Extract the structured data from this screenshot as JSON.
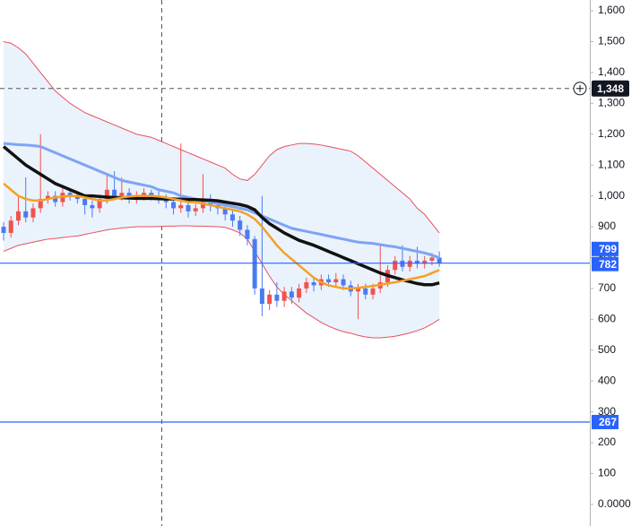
{
  "chart_data": {
    "type": "candlestick",
    "ylim": [
      -70,
      1635
    ],
    "yticks": [
      {
        "value": 0,
        "label": "0.0000"
      },
      100,
      200,
      300,
      400,
      500,
      600,
      700,
      800,
      900,
      {
        "value": 1000,
        "label": "1,000"
      },
      {
        "value": 1100,
        "label": "1,100"
      },
      {
        "value": 1200,
        "label": "1,200"
      },
      {
        "value": 1300,
        "label": "1,300"
      },
      {
        "value": 1400,
        "label": "1,400"
      },
      {
        "value": 1500,
        "label": "1,500"
      },
      {
        "value": 1600,
        "label": "1,600"
      }
    ],
    "candles": {
      "up_color": "#ef5350",
      "down_color": "#4a7cf0",
      "open": [
        900,
        880,
        920,
        950,
        930,
        960,
        990,
        1000,
        980,
        1010,
        1000,
        990,
        970,
        960,
        990,
        1020,
        1000,
        1010,
        990,
        1000,
        1010,
        1000,
        990,
        980,
        960,
        970,
        950,
        960,
        990,
        970,
        960,
        940,
        920,
        890,
        860,
        700,
        650,
        680,
        660,
        690,
        670,
        700,
        720,
        710,
        730,
        720,
        730,
        710,
        690,
        700,
        680,
        700,
        720,
        760,
        790,
        770,
        790,
        780,
        790,
        800
      ],
      "high": [
        915,
        935,
        1000,
        1060,
        975,
        1200,
        1015,
        1015,
        1025,
        1025,
        1015,
        1005,
        985,
        1005,
        1070,
        1080,
        1060,
        1025,
        1015,
        1025,
        1020,
        1015,
        1005,
        995,
        1170,
        985,
        975,
        1070,
        1005,
        985,
        975,
        955,
        935,
        905,
        870,
        1000,
        695,
        720,
        705,
        705,
        715,
        735,
        735,
        745,
        745,
        750,
        745,
        725,
        715,
        715,
        715,
        840,
        775,
        805,
        840,
        805,
        835,
        805,
        815,
        820
      ],
      "low": [
        855,
        865,
        905,
        915,
        915,
        945,
        975,
        965,
        965,
        985,
        975,
        940,
        930,
        945,
        975,
        985,
        985,
        975,
        975,
        985,
        985,
        975,
        960,
        940,
        945,
        930,
        935,
        945,
        950,
        940,
        920,
        900,
        870,
        840,
        680,
        610,
        630,
        640,
        640,
        650,
        655,
        685,
        690,
        695,
        705,
        705,
        695,
        675,
        600,
        665,
        665,
        685,
        705,
        745,
        755,
        755,
        765,
        765,
        775,
        770
      ],
      "close": [
        880,
        920,
        950,
        930,
        960,
        990,
        1000,
        980,
        1010,
        1000,
        990,
        970,
        960,
        990,
        1020,
        1000,
        1010,
        990,
        1000,
        1010,
        1000,
        990,
        980,
        960,
        970,
        950,
        960,
        990,
        970,
        960,
        940,
        920,
        890,
        860,
        700,
        650,
        680,
        660,
        690,
        670,
        700,
        720,
        710,
        730,
        720,
        730,
        710,
        690,
        700,
        680,
        700,
        720,
        760,
        790,
        770,
        790,
        780,
        790,
        800,
        782
      ]
    },
    "bands": {
      "color": "#e8505b",
      "fill": "#eaf2fc",
      "upper": [
        1500,
        1495,
        1480,
        1460,
        1430,
        1400,
        1370,
        1340,
        1320,
        1300,
        1285,
        1270,
        1260,
        1250,
        1240,
        1230,
        1220,
        1210,
        1200,
        1195,
        1190,
        1180,
        1170,
        1160,
        1150,
        1140,
        1130,
        1120,
        1110,
        1100,
        1090,
        1070,
        1055,
        1050,
        1070,
        1100,
        1130,
        1150,
        1160,
        1165,
        1170,
        1170,
        1168,
        1165,
        1160,
        1155,
        1150,
        1145,
        1130,
        1110,
        1090,
        1070,
        1050,
        1030,
        1010,
        990,
        960,
        940,
        910,
        880
      ],
      "lower": [
        820,
        830,
        840,
        845,
        850,
        855,
        860,
        862,
        865,
        868,
        870,
        875,
        880,
        885,
        890,
        893,
        896,
        898,
        900,
        900,
        900,
        901,
        902,
        902,
        903,
        903,
        902,
        902,
        901,
        900,
        898,
        890,
        880,
        860,
        820,
        780,
        740,
        705,
        680,
        660,
        640,
        620,
        605,
        590,
        578,
        568,
        560,
        555,
        548,
        543,
        540,
        540,
        542,
        545,
        550,
        556,
        563,
        572,
        585,
        600
      ]
    },
    "lines": [
      {
        "color": "#7fa3f5",
        "width": 3,
        "values": [
          1170,
          1168,
          1166,
          1165,
          1163,
          1160,
          1150,
          1140,
          1130,
          1120,
          1110,
          1100,
          1090,
          1080,
          1070,
          1060,
          1050,
          1045,
          1040,
          1035,
          1030,
          1020,
          1015,
          1010,
          1000,
          995,
          990,
          985,
          980,
          975,
          970,
          965,
          960,
          955,
          945,
          935,
          925,
          915,
          905,
          895,
          890,
          885,
          880,
          875,
          870,
          865,
          860,
          855,
          850,
          848,
          846,
          842,
          838,
          835,
          830,
          825,
          820,
          815,
          808,
          799
        ]
      },
      {
        "color": "#111111",
        "width": 3.5,
        "values": [
          1160,
          1140,
          1120,
          1100,
          1085,
          1070,
          1055,
          1040,
          1030,
          1020,
          1010,
          1000,
          1000,
          998,
          996,
          995,
          994,
          993,
          992,
          992,
          992,
          991,
          990,
          990,
          989,
          988,
          988,
          987,
          986,
          984,
          980,
          976,
          972,
          966,
          955,
          930,
          910,
          895,
          880,
          868,
          856,
          848,
          840,
          830,
          820,
          810,
          800,
          790,
          780,
          770,
          760,
          750,
          742,
          735,
          728,
          722,
          716,
          712,
          712,
          718
        ]
      },
      {
        "color": "#f5a024",
        "width": 2.5,
        "values": [
          1040,
          1020,
          1000,
          990,
          985,
          985,
          990,
          995,
          998,
          1000,
          1000,
          995,
          990,
          985,
          985,
          990,
          995,
          998,
          1000,
          1000,
          1000,
          998,
          995,
          990,
          985,
          980,
          980,
          975,
          970,
          965,
          960,
          955,
          950,
          940,
          925,
          900,
          870,
          840,
          815,
          795,
          775,
          755,
          735,
          720,
          710,
          705,
          700,
          700,
          702,
          705,
          708,
          712,
          716,
          720,
          725,
          730,
          735,
          740,
          750,
          760
        ]
      }
    ],
    "crosshair": {
      "value": 1348,
      "label": "1,348"
    },
    "price_lines": [
      {
        "value": 782,
        "label": "782",
        "color": "#2962ff"
      },
      {
        "value": 267,
        "label": "267",
        "color": "#2962ff"
      }
    ],
    "markers": [
      {
        "value": 799,
        "label": "799",
        "color": "#2962ff"
      }
    ]
  }
}
